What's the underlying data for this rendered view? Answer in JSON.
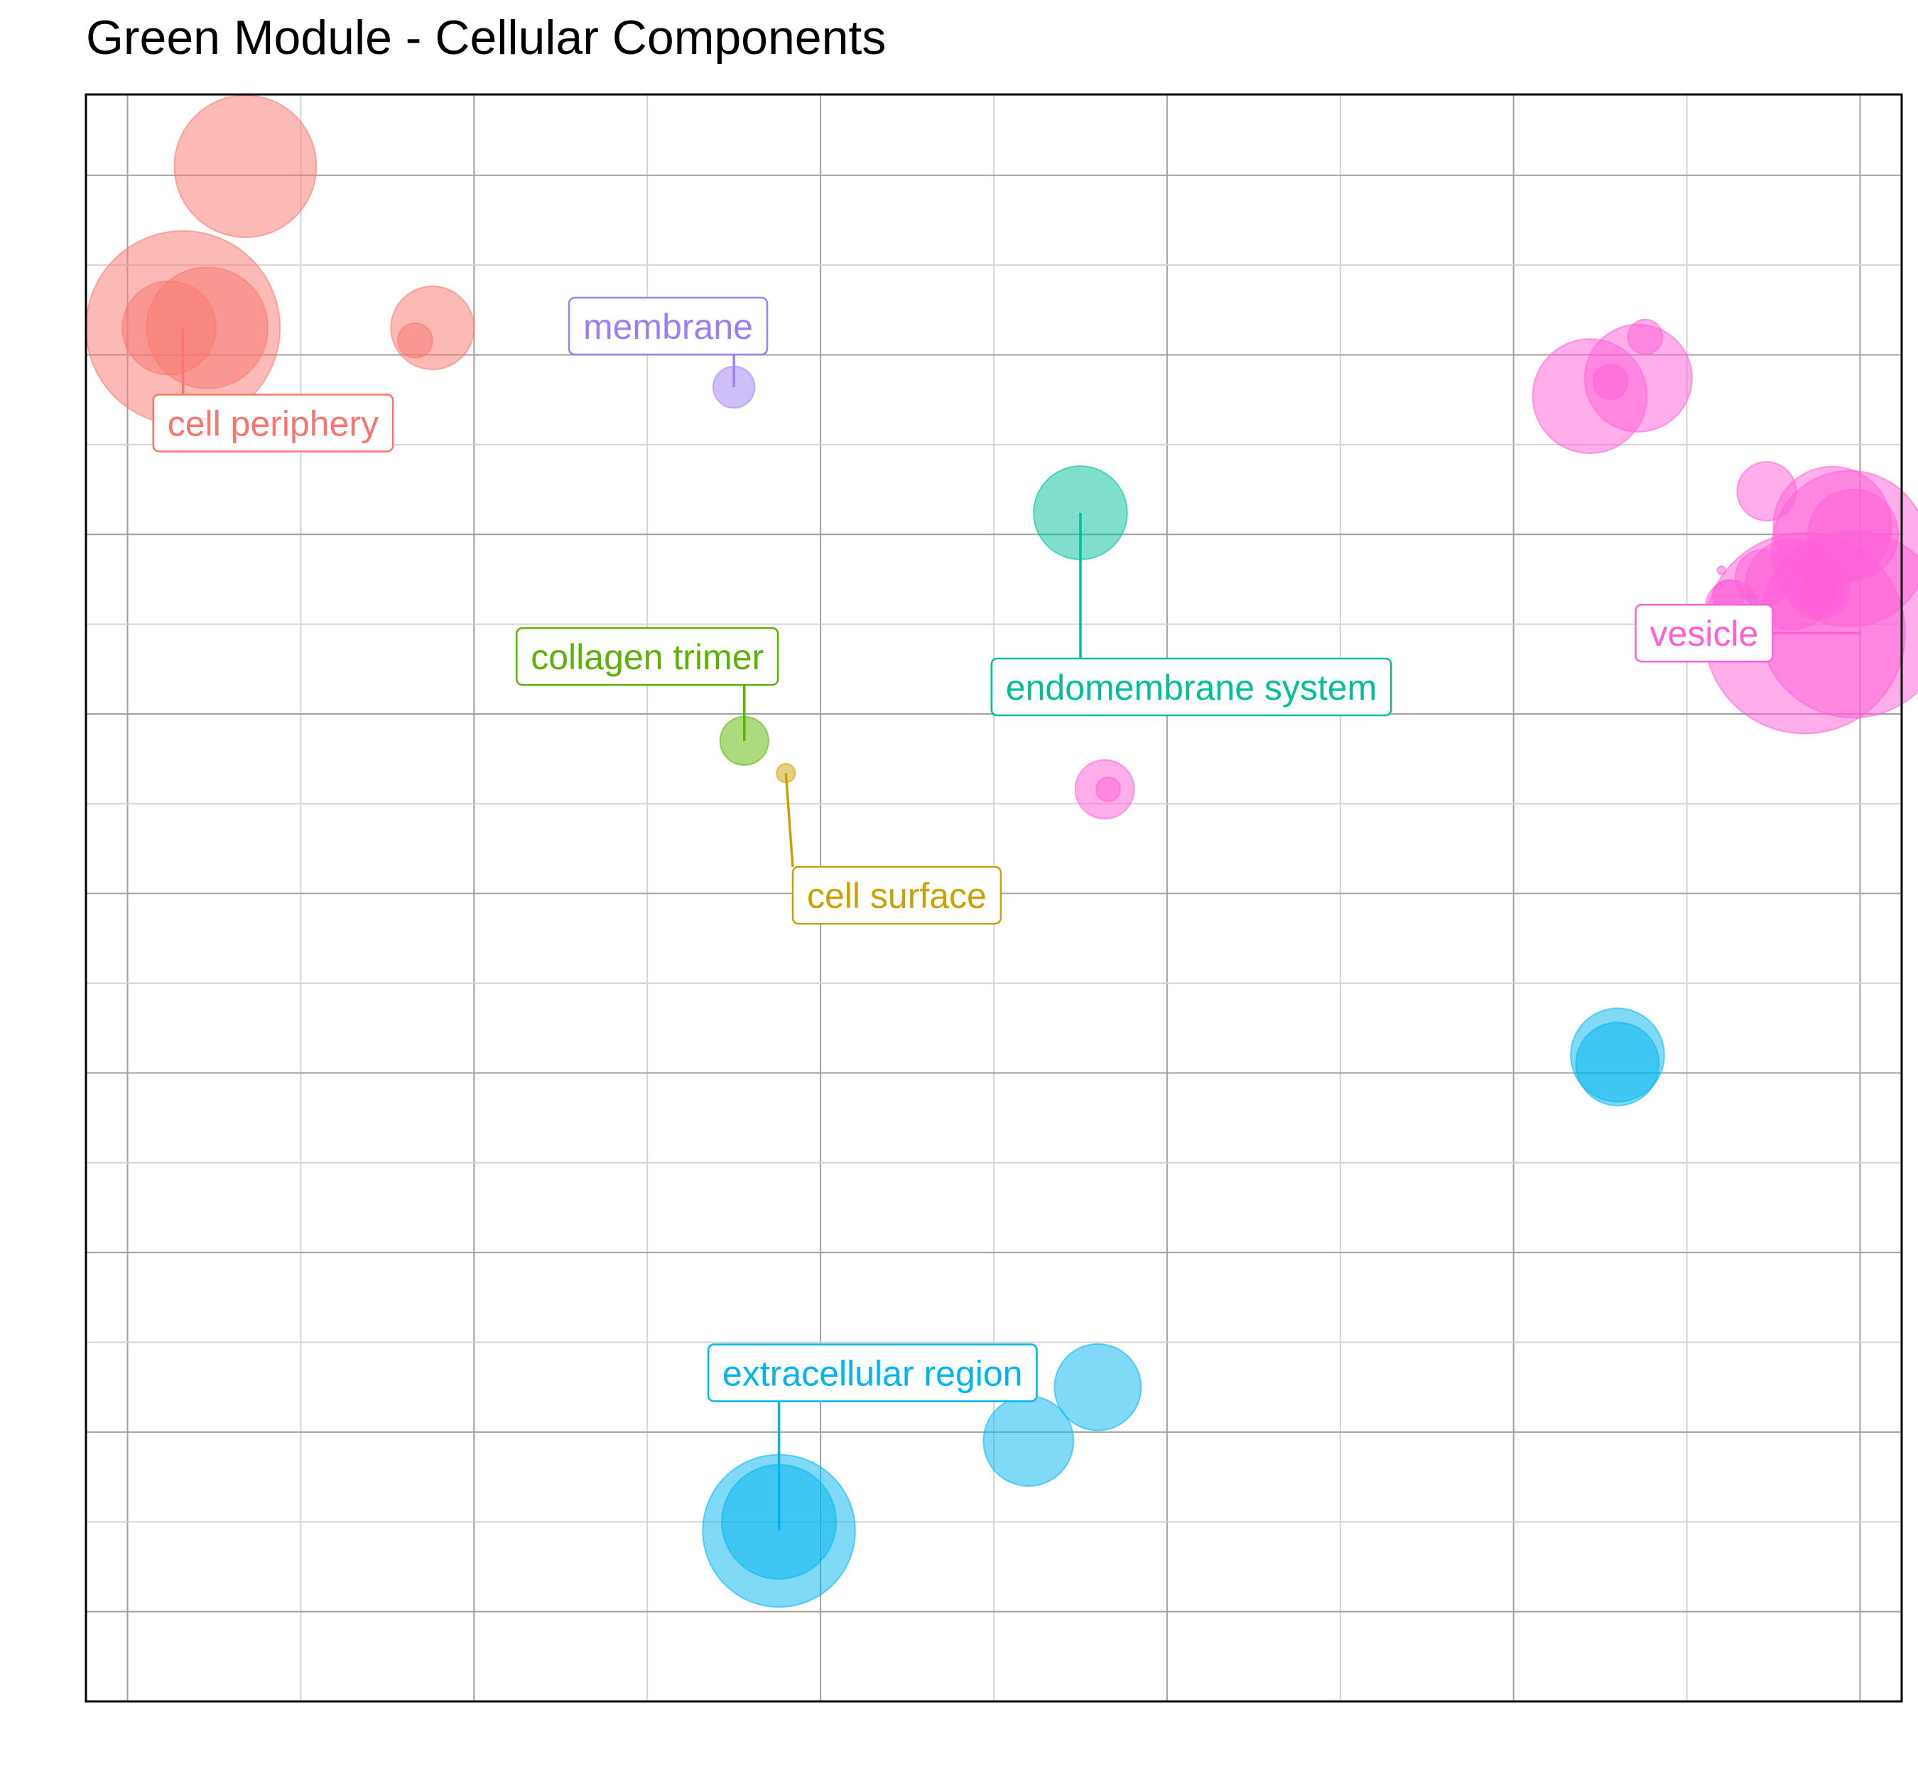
{
  "title": "Green Module - Cellular Components",
  "chart_data": {
    "type": "scatter",
    "title": "Green Module - Cellular Components",
    "xlabel": "",
    "ylabel": "",
    "xlim": [
      -0.12,
      5.12
    ],
    "ylim": [
      -5.5,
      3.45
    ],
    "grid": true,
    "legend": "none",
    "bubble_size_unit": "radius in x-axis units",
    "groups": [
      {
        "label": "cell periphery",
        "color": "#F8766D",
        "label_anchor": [
          0.16,
          2.15
        ],
        "points": [
          {
            "x": 0.34,
            "y": 3.05,
            "r": 0.205
          },
          {
            "x": 0.16,
            "y": 2.15,
            "r": 0.28
          },
          {
            "x": 0.23,
            "y": 2.15,
            "r": 0.175
          },
          {
            "x": 0.12,
            "y": 2.15,
            "r": 0.135
          },
          {
            "x": 0.88,
            "y": 2.15,
            "r": 0.12
          },
          {
            "x": 0.83,
            "y": 2.08,
            "r": 0.05
          }
        ]
      },
      {
        "label": "membrane",
        "color": "#9D7FF5",
        "label_anchor": [
          1.75,
          1.82
        ],
        "points": [
          {
            "x": 1.75,
            "y": 1.82,
            "r": 0.06
          }
        ]
      },
      {
        "label": "endomembrane system",
        "color": "#00BE9A",
        "label_anchor": [
          2.75,
          1.12
        ],
        "points": [
          {
            "x": 2.75,
            "y": 1.12,
            "r": 0.135
          }
        ]
      },
      {
        "label": "collagen trimer",
        "color": "#5BB300",
        "label_anchor": [
          1.78,
          -0.15
        ],
        "points": [
          {
            "x": 1.78,
            "y": -0.15,
            "r": 0.07
          }
        ]
      },
      {
        "label": "cell surface",
        "color": "#C9A100",
        "label_anchor": [
          1.9,
          -0.33
        ],
        "points": [
          {
            "x": 1.9,
            "y": -0.33,
            "r": 0.027
          }
        ]
      },
      {
        "label": "vesicle",
        "color": "#FF5ED8",
        "label_anchor": [
          5.0,
          0.45
        ],
        "points": [
          {
            "x": 4.84,
            "y": 0.45,
            "r": 0.29
          },
          {
            "x": 4.98,
            "y": 0.5,
            "r": 0.27
          },
          {
            "x": 4.97,
            "y": 0.92,
            "r": 0.225
          },
          {
            "x": 4.92,
            "y": 1.05,
            "r": 0.17
          },
          {
            "x": 4.98,
            "y": 1.0,
            "r": 0.13
          },
          {
            "x": 4.8,
            "y": 0.72,
            "r": 0.13
          },
          {
            "x": 4.88,
            "y": 0.7,
            "r": 0.09
          },
          {
            "x": 4.89,
            "y": 0.68,
            "r": 0.06
          },
          {
            "x": 4.72,
            "y": 0.76,
            "r": 0.08
          },
          {
            "x": 4.63,
            "y": 0.6,
            "r": 0.075
          },
          {
            "x": 4.62,
            "y": 0.66,
            "r": 0.045
          },
          {
            "x": 4.6,
            "y": 0.8,
            "r": 0.012
          },
          {
            "x": 4.73,
            "y": 1.24,
            "r": 0.085
          },
          {
            "x": 4.22,
            "y": 1.77,
            "r": 0.165
          },
          {
            "x": 4.36,
            "y": 1.87,
            "r": 0.155
          },
          {
            "x": 4.38,
            "y": 2.1,
            "r": 0.05
          },
          {
            "x": 4.28,
            "y": 1.85,
            "r": 0.05
          },
          {
            "x": 2.82,
            "y": -0.42,
            "r": 0.085
          },
          {
            "x": 2.83,
            "y": -0.42,
            "r": 0.035
          }
        ]
      },
      {
        "label": "extracellular region",
        "color": "#00B4EF",
        "label_anchor": [
          1.88,
          -4.55
        ],
        "points": [
          {
            "x": 1.88,
            "y": -4.55,
            "r": 0.22
          },
          {
            "x": 1.88,
            "y": -4.5,
            "r": 0.165
          },
          {
            "x": 2.6,
            "y": -4.05,
            "r": 0.13
          },
          {
            "x": 2.8,
            "y": -3.75,
            "r": 0.125
          },
          {
            "x": 4.3,
            "y": -1.9,
            "r": 0.135
          },
          {
            "x": 4.3,
            "y": -1.95,
            "r": 0.12
          }
        ]
      }
    ],
    "labels": [
      {
        "text": "cell periphery",
        "group": "cell periphery",
        "at": [
          0.42,
          1.62
        ]
      },
      {
        "text": "membrane",
        "group": "membrane",
        "at": [
          1.56,
          2.16
        ]
      },
      {
        "text": "collagen trimer",
        "group": "collagen trimer",
        "at": [
          1.5,
          0.32
        ]
      },
      {
        "text": "endomembrane system",
        "group": "endomembrane system",
        "at": [
          3.07,
          0.15
        ]
      },
      {
        "text": "cell surface",
        "group": "cell surface",
        "at": [
          2.22,
          -1.01
        ]
      },
      {
        "text": "vesicle",
        "group": "vesicle",
        "at": [
          4.55,
          0.45
        ]
      },
      {
        "text": "extracellular region",
        "group": "extracellular region",
        "at": [
          2.15,
          -3.67
        ]
      }
    ]
  }
}
